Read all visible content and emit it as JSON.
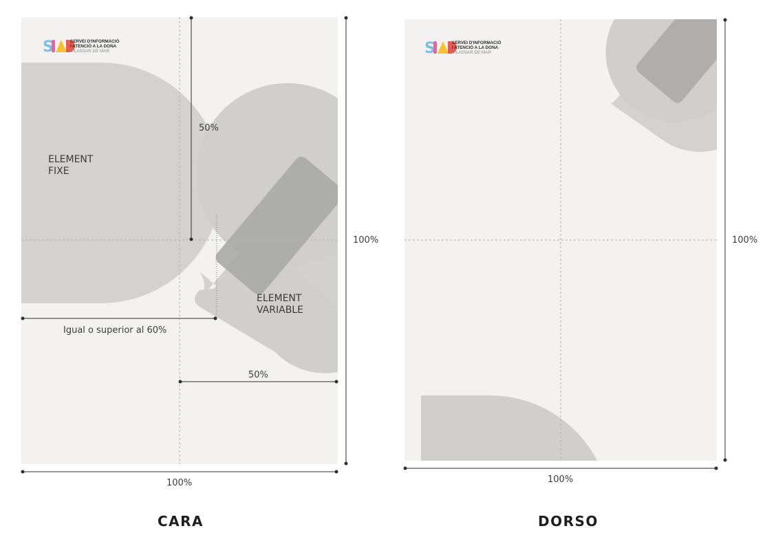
{
  "front": {
    "logo": {
      "mark": "SIAD",
      "line1": "SERVEI D'INFORMACIÓ",
      "line2": "I ATENCIÓ A LA DONA",
      "line3": "VILASSAR DE MAR"
    },
    "fixed_label_line1": "ELEMENT",
    "fixed_label_line2": "FIXE",
    "variable_label_line1": "ELEMENT",
    "variable_label_line2": "VARIABLE",
    "dim_vertical_half": "50%",
    "dim_min_width": "Igual o superior al 60%",
    "dim_horizontal_half": "50%",
    "dim_width": "100%",
    "dim_height": "100%",
    "caption": "CARA"
  },
  "back": {
    "logo": {
      "mark": "SIAD",
      "line1": "SERVEI D'INFORMACIÓ",
      "line2": "I ATENCIÓ A LA DONA",
      "line3": "VILASSAR DE MAR"
    },
    "dim_width": "100%",
    "dim_height": "100%",
    "caption": "DORSO"
  },
  "colors": {
    "sheet": "#f3f2f1",
    "shape_light": "#d0cfce",
    "shape_dark": "#b3b2b1",
    "logo_blue": "#7fbfe0",
    "logo_pink": "#e0669c",
    "logo_yellow": "#f6c233",
    "logo_red": "#ea5a4f",
    "logo_navy": "#2f4f8e"
  }
}
